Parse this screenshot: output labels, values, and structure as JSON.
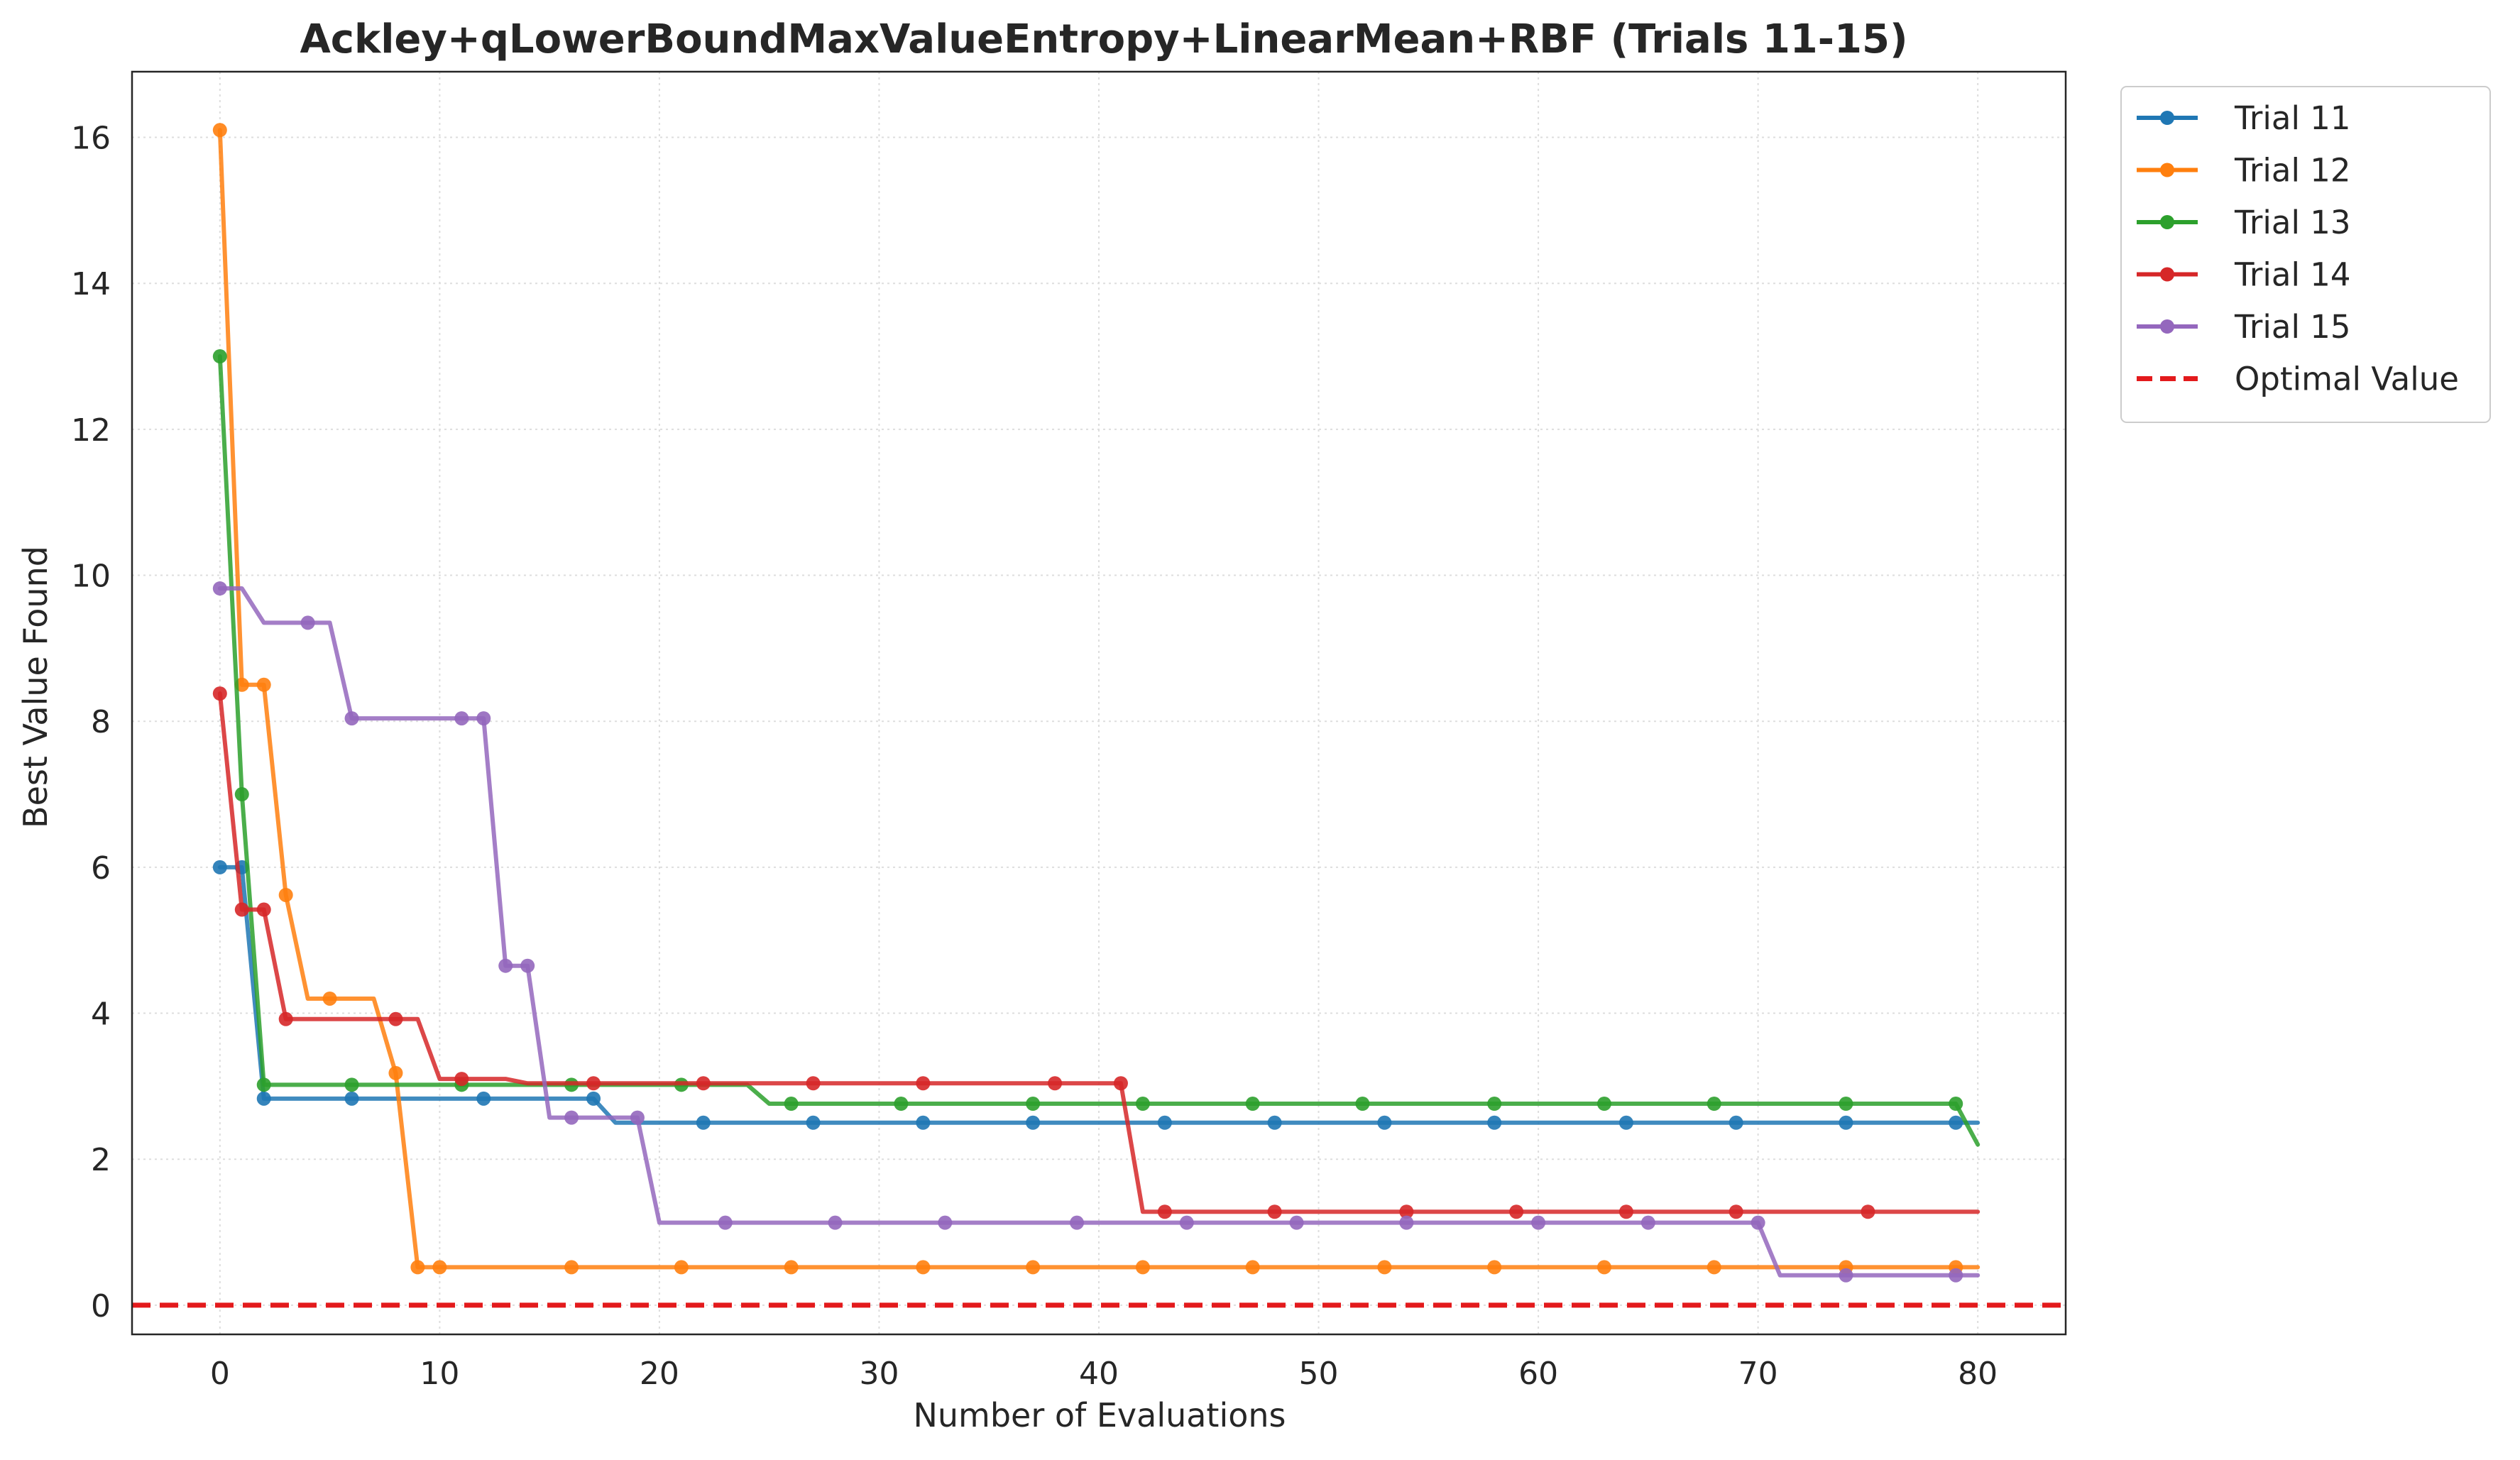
{
  "chart_data": {
    "type": "line",
    "title": "Ackley+qLowerBoundMaxValueEntropy+LinearMean+RBF (Trials 11-15)",
    "xlabel": "Number of Evaluations",
    "ylabel": "Best Value Found",
    "xlim": [
      -4,
      84
    ],
    "ylim": [
      -0.4,
      16.9
    ],
    "x_ticks": [
      0,
      10,
      20,
      30,
      40,
      50,
      60,
      70,
      80
    ],
    "y_ticks": [
      0,
      2,
      4,
      6,
      8,
      10,
      12,
      14,
      16
    ],
    "grid": true,
    "legend_position": "outside-top-right",
    "series": [
      {
        "name": "Trial 11",
        "color": "#1f77b4",
        "line": [
          [
            0,
            6.0
          ],
          [
            1,
            6.0
          ],
          [
            2,
            2.83
          ],
          [
            17,
            2.83
          ],
          [
            18,
            2.5
          ],
          [
            80,
            2.5
          ]
        ],
        "markers": [
          [
            0,
            6.0
          ],
          [
            1,
            6.0
          ],
          [
            2,
            2.83
          ],
          [
            6,
            2.83
          ],
          [
            12,
            2.83
          ],
          [
            17,
            2.83
          ],
          [
            22,
            2.5
          ],
          [
            27,
            2.5
          ],
          [
            32,
            2.5
          ],
          [
            37,
            2.5
          ],
          [
            43,
            2.5
          ],
          [
            48,
            2.5
          ],
          [
            53,
            2.5
          ],
          [
            58,
            2.5
          ],
          [
            64,
            2.5
          ],
          [
            69,
            2.5
          ],
          [
            74,
            2.5
          ],
          [
            79,
            2.5
          ]
        ]
      },
      {
        "name": "Trial 12",
        "color": "#ff7f0e",
        "line": [
          [
            0,
            16.1
          ],
          [
            1,
            8.5
          ],
          [
            2,
            8.5
          ],
          [
            3,
            5.62
          ],
          [
            4,
            4.2
          ],
          [
            7,
            4.2
          ],
          [
            8,
            3.18
          ],
          [
            9,
            0.52
          ],
          [
            80,
            0.52
          ]
        ],
        "markers": [
          [
            0,
            16.1
          ],
          [
            1,
            8.5
          ],
          [
            2,
            8.5
          ],
          [
            3,
            5.62
          ],
          [
            5,
            4.2
          ],
          [
            8,
            3.18
          ],
          [
            9,
            0.52
          ],
          [
            10,
            0.52
          ],
          [
            16,
            0.52
          ],
          [
            21,
            0.52
          ],
          [
            26,
            0.52
          ],
          [
            32,
            0.52
          ],
          [
            37,
            0.52
          ],
          [
            42,
            0.52
          ],
          [
            47,
            0.52
          ],
          [
            53,
            0.52
          ],
          [
            58,
            0.52
          ],
          [
            63,
            0.52
          ],
          [
            68,
            0.52
          ],
          [
            74,
            0.52
          ],
          [
            79,
            0.52
          ]
        ]
      },
      {
        "name": "Trial 13",
        "color": "#2ca02c",
        "line": [
          [
            0,
            13.0
          ],
          [
            1,
            7.0
          ],
          [
            2,
            3.02
          ],
          [
            24,
            3.02
          ],
          [
            25,
            2.76
          ],
          [
            79,
            2.76
          ],
          [
            80,
            2.2
          ]
        ],
        "markers": [
          [
            0,
            13.0
          ],
          [
            1,
            7.0
          ],
          [
            2,
            3.02
          ],
          [
            6,
            3.02
          ],
          [
            11,
            3.02
          ],
          [
            16,
            3.02
          ],
          [
            21,
            3.02
          ],
          [
            26,
            2.76
          ],
          [
            31,
            2.76
          ],
          [
            37,
            2.76
          ],
          [
            42,
            2.76
          ],
          [
            47,
            2.76
          ],
          [
            52,
            2.76
          ],
          [
            58,
            2.76
          ],
          [
            63,
            2.76
          ],
          [
            68,
            2.76
          ],
          [
            74,
            2.76
          ],
          [
            79,
            2.76
          ]
        ]
      },
      {
        "name": "Trial 14",
        "color": "#d62728",
        "line": [
          [
            0,
            8.38
          ],
          [
            1,
            5.42
          ],
          [
            2,
            5.42
          ],
          [
            3,
            3.92
          ],
          [
            9,
            3.92
          ],
          [
            10,
            3.1
          ],
          [
            13,
            3.1
          ],
          [
            14,
            3.04
          ],
          [
            41,
            3.04
          ],
          [
            42,
            1.28
          ],
          [
            80,
            1.28
          ]
        ],
        "markers": [
          [
            0,
            8.38
          ],
          [
            1,
            5.42
          ],
          [
            2,
            5.42
          ],
          [
            3,
            3.92
          ],
          [
            8,
            3.92
          ],
          [
            11,
            3.1
          ],
          [
            17,
            3.04
          ],
          [
            22,
            3.04
          ],
          [
            27,
            3.04
          ],
          [
            32,
            3.04
          ],
          [
            38,
            3.04
          ],
          [
            41,
            3.04
          ],
          [
            43,
            1.28
          ],
          [
            48,
            1.28
          ],
          [
            54,
            1.28
          ],
          [
            59,
            1.28
          ],
          [
            64,
            1.28
          ],
          [
            69,
            1.28
          ],
          [
            75,
            1.28
          ]
        ]
      },
      {
        "name": "Trial 15",
        "color": "#9467bd",
        "line": [
          [
            0,
            9.82
          ],
          [
            1,
            9.82
          ],
          [
            2,
            9.35
          ],
          [
            5,
            9.35
          ],
          [
            6,
            8.04
          ],
          [
            12,
            8.04
          ],
          [
            13,
            4.65
          ],
          [
            14,
            4.65
          ],
          [
            15,
            2.57
          ],
          [
            19,
            2.57
          ],
          [
            20,
            1.13
          ],
          [
            70,
            1.13
          ],
          [
            71,
            0.41
          ],
          [
            80,
            0.41
          ]
        ],
        "markers": [
          [
            0,
            9.82
          ],
          [
            4,
            9.35
          ],
          [
            6,
            8.04
          ],
          [
            11,
            8.04
          ],
          [
            12,
            8.04
          ],
          [
            13,
            4.65
          ],
          [
            14,
            4.65
          ],
          [
            16,
            2.57
          ],
          [
            19,
            2.57
          ],
          [
            23,
            1.13
          ],
          [
            28,
            1.13
          ],
          [
            33,
            1.13
          ],
          [
            39,
            1.13
          ],
          [
            44,
            1.13
          ],
          [
            49,
            1.13
          ],
          [
            54,
            1.13
          ],
          [
            60,
            1.13
          ],
          [
            65,
            1.13
          ],
          [
            70,
            1.13
          ],
          [
            74,
            0.41
          ],
          [
            79,
            0.41
          ]
        ]
      }
    ],
    "reference_line": {
      "name": "Optimal Value",
      "y": 0,
      "color": "#e31a1c",
      "style": "dashed"
    }
  }
}
